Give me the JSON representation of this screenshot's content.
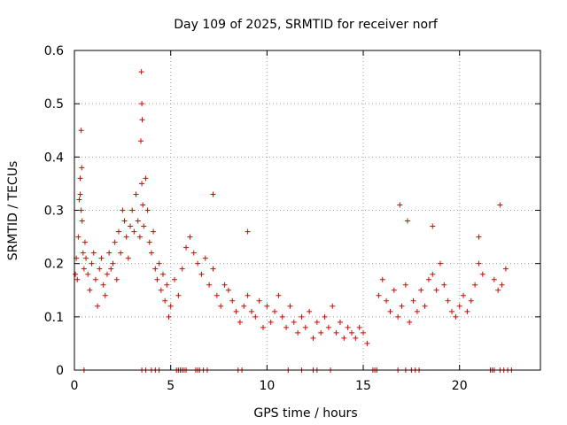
{
  "chart_data": {
    "type": "scatter",
    "title": "Day 109 of 2025, SRMTID for receiver norf",
    "xlabel": "GPS time / hours",
    "ylabel": "SRMTID / TECUs",
    "xlim": [
      0,
      24.2
    ],
    "ylim": [
      0,
      0.6
    ],
    "xticks": [
      0,
      5,
      10,
      15,
      20
    ],
    "yticks": [
      0,
      0.1,
      0.2,
      0.3,
      0.4,
      0.5,
      0.6
    ],
    "xtick_labels": [
      "0",
      "5",
      "10",
      "15",
      "20"
    ],
    "ytick_labels": [
      "0",
      "0.1",
      "0.2",
      "0.3",
      "0.4",
      "0.5",
      "0.6"
    ],
    "grid": true,
    "marker": "+",
    "color": "#e00000",
    "series": [
      {
        "name": "SRMTID",
        "x": [
          0.05,
          0.1,
          0.15,
          0.2,
          0.25,
          0.3,
          0.35,
          0.4,
          0.45,
          0.5,
          0.55,
          0.6,
          0.7,
          0.8,
          0.9,
          1.0,
          1.1,
          1.2,
          1.3,
          1.4,
          1.5,
          1.6,
          1.7,
          1.8,
          1.9,
          2.0,
          2.1,
          2.2,
          2.3,
          2.4,
          2.5,
          2.6,
          2.7,
          2.8,
          2.9,
          3.0,
          3.1,
          3.2,
          3.3,
          3.4,
          3.5,
          3.55,
          3.6,
          3.7,
          3.8,
          3.9,
          4.0,
          4.1,
          4.2,
          4.3,
          4.4,
          4.5,
          4.6,
          4.7,
          4.8,
          4.9,
          5.0,
          5.2,
          5.4,
          5.6,
          5.8,
          6.0,
          6.2,
          6.4,
          6.6,
          6.8,
          7.0,
          7.2,
          7.4,
          7.6,
          7.8,
          8.0,
          8.2,
          8.4,
          8.6,
          8.8,
          9.0,
          9.2,
          9.4,
          9.6,
          9.8,
          10.0,
          10.2,
          10.4,
          10.6,
          10.8,
          11.0,
          11.2,
          11.4,
          11.6,
          11.8,
          12.0,
          12.2,
          12.4,
          12.6,
          12.8,
          13.0,
          13.2,
          13.4,
          13.6,
          13.8,
          14.0,
          14.2,
          14.4,
          14.6,
          14.8,
          15.0,
          15.2,
          15.8,
          16.0,
          16.2,
          16.4,
          16.6,
          16.8,
          17.0,
          17.2,
          17.4,
          17.6,
          17.8,
          18.0,
          18.2,
          18.4,
          18.6,
          18.8,
          19.0,
          19.2,
          19.4,
          19.6,
          19.8,
          20.0,
          20.2,
          20.4,
          20.6,
          20.8,
          21.0,
          21.2,
          21.8,
          22.0,
          22.2,
          22.4,
          3.48,
          3.5,
          3.52,
          3.45,
          0.35,
          0.38,
          0.3,
          7.2,
          9.0,
          16.9,
          17.3,
          18.6,
          21.0,
          22.1
        ],
        "y": [
          0.18,
          0.21,
          0.17,
          0.25,
          0.32,
          0.36,
          0.3,
          0.28,
          0.22,
          0.19,
          0.24,
          0.21,
          0.18,
          0.15,
          0.2,
          0.22,
          0.17,
          0.12,
          0.19,
          0.21,
          0.16,
          0.14,
          0.18,
          0.22,
          0.19,
          0.2,
          0.24,
          0.17,
          0.26,
          0.22,
          0.3,
          0.28,
          0.25,
          0.21,
          0.27,
          0.3,
          0.26,
          0.33,
          0.28,
          0.25,
          0.35,
          0.31,
          0.27,
          0.36,
          0.3,
          0.24,
          0.22,
          0.26,
          0.19,
          0.17,
          0.2,
          0.15,
          0.18,
          0.13,
          0.16,
          0.1,
          0.12,
          0.17,
          0.14,
          0.19,
          0.23,
          0.25,
          0.22,
          0.2,
          0.18,
          0.21,
          0.16,
          0.19,
          0.14,
          0.12,
          0.16,
          0.15,
          0.13,
          0.11,
          0.09,
          0.12,
          0.14,
          0.11,
          0.1,
          0.13,
          0.08,
          0.12,
          0.09,
          0.11,
          0.14,
          0.1,
          0.08,
          0.12,
          0.09,
          0.07,
          0.1,
          0.08,
          0.11,
          0.06,
          0.09,
          0.07,
          0.1,
          0.08,
          0.12,
          0.07,
          0.09,
          0.06,
          0.08,
          0.07,
          0.06,
          0.08,
          0.07,
          0.05,
          0.14,
          0.17,
          0.13,
          0.11,
          0.15,
          0.1,
          0.12,
          0.16,
          0.09,
          0.13,
          0.11,
          0.15,
          0.12,
          0.17,
          0.18,
          0.15,
          0.2,
          0.16,
          0.13,
          0.11,
          0.1,
          0.12,
          0.14,
          0.11,
          0.13,
          0.16,
          0.2,
          0.18,
          0.17,
          0.15,
          0.16,
          0.19,
          0.56,
          0.5,
          0.47,
          0.43,
          0.45,
          0.38,
          0.33,
          0.33,
          0.26,
          0.31,
          0.28,
          0.27,
          0.25,
          0.31
        ]
      }
    ],
    "zero_markers_x": [
      0.5,
      3.5,
      3.7,
      4.0,
      4.2,
      4.4,
      5.3,
      5.4,
      5.5,
      5.6,
      5.7,
      5.8,
      6.3,
      6.4,
      6.5,
      6.7,
      6.9,
      8.5,
      8.7,
      11.1,
      11.8,
      12.4,
      12.6,
      13.3,
      15.5,
      15.6,
      15.7,
      16.8,
      17.2,
      17.5,
      17.7,
      17.9,
      21.6,
      21.7,
      21.8,
      22.1,
      22.3,
      22.5,
      22.7
    ]
  }
}
